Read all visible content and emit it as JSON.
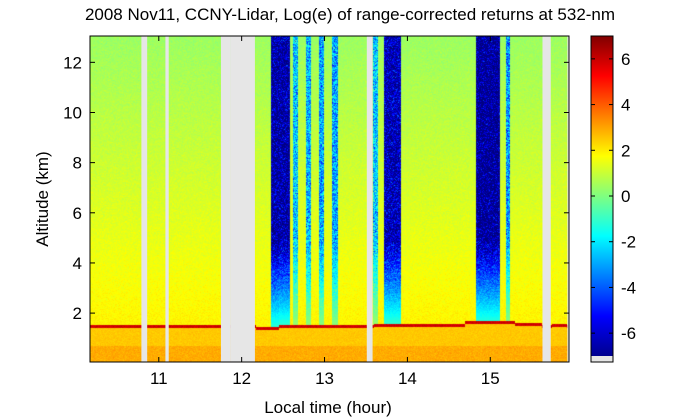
{
  "chart_data": {
    "type": "heatmap",
    "title": "2008 Nov11, CCNY-Lidar, Log(e) of range-corrected returns at 532-nm",
    "xlabel": "Local time (hour)",
    "ylabel": "Altitude (km)",
    "xlim": [
      10.17,
      15.95
    ],
    "ylim": [
      0.05,
      13.05
    ],
    "xticks": [
      11,
      12,
      13,
      14,
      15
    ],
    "xtick_labels": [
      "11",
      "12",
      "13",
      "14",
      "15"
    ],
    "yticks": [
      2,
      4,
      6,
      8,
      10,
      12
    ],
    "ytick_labels": [
      "2",
      "4",
      "6",
      "8",
      "10",
      "12"
    ],
    "colorbar": {
      "range": [
        -7,
        7
      ],
      "ticks": [
        -6,
        -4,
        -2,
        0,
        2,
        4,
        6
      ],
      "tick_labels": [
        "-6",
        "-4",
        "-2",
        "0",
        "2",
        "4",
        "6"
      ],
      "colormap": "jet"
    },
    "layers": {
      "surface_layer_top_km": 0.7,
      "boundary_layer_top_km": 1.45,
      "boundary_layer_value": 2.5,
      "surface_value": 2.9,
      "free_troposphere_value_low": 1.9,
      "free_troposphere_value_high": 0.4
    },
    "data_gaps_hours": [
      [
        10.79,
        10.86
      ],
      [
        11.08,
        11.12
      ],
      [
        11.75,
        11.86
      ],
      [
        11.86,
        12.16
      ],
      [
        13.51,
        13.58
      ],
      [
        15.63,
        15.73
      ],
      [
        15.93,
        15.95
      ]
    ],
    "boundary_layer_cloud_segments": [
      [
        12.17,
        12.45,
        1.38
      ],
      [
        12.45,
        12.9,
        1.48
      ],
      [
        12.9,
        13.5,
        1.47
      ],
      [
        13.6,
        14.7,
        1.5
      ],
      [
        14.7,
        15.3,
        1.62
      ],
      [
        15.3,
        15.62,
        1.55
      ],
      [
        15.74,
        15.92,
        1.52
      ]
    ],
    "attenuated_columns": [
      [
        12.35,
        12.58,
        -6.5
      ],
      [
        12.62,
        12.68,
        -2.5
      ],
      [
        12.78,
        12.84,
        -2.8
      ],
      [
        12.93,
        12.99,
        -3.0
      ],
      [
        13.09,
        13.16,
        -3.0
      ],
      [
        13.59,
        13.64,
        -2.5
      ],
      [
        13.72,
        13.92,
        -6.2
      ],
      [
        14.83,
        15.12,
        -6.8
      ],
      [
        15.19,
        15.24,
        -3.2
      ]
    ],
    "colors": {
      "missing": "#e6e6e6",
      "background": "#ffffff"
    }
  }
}
